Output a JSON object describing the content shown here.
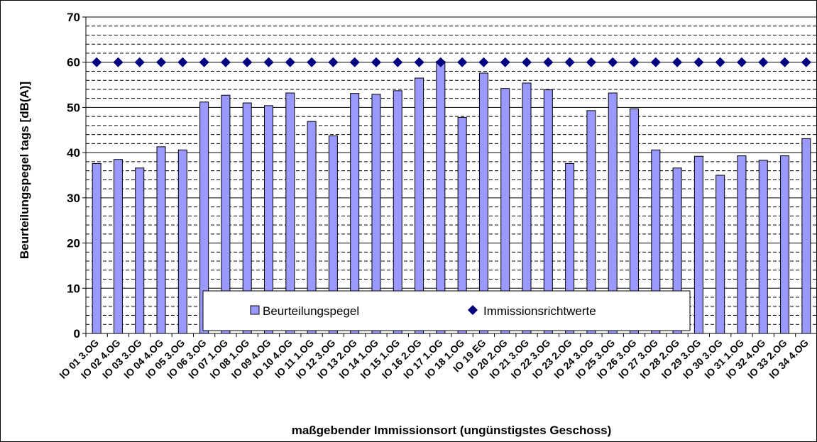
{
  "chart_data": {
    "type": "bar",
    "ylabel": "Beurteilungspegel tags [dB(A)]",
    "xlabel": "maßgebender Immissionsort (ungünstigstes Geschoss)",
    "ylim": [
      0,
      70
    ],
    "yticks": [
      0,
      10,
      20,
      30,
      40,
      50,
      60,
      70
    ],
    "minor_grid_step": 2,
    "grid": true,
    "legend_position": "bottom-center",
    "categories": [
      "IO 01 3.OG",
      "IO 02 4.OG",
      "IO 03 3.OG",
      "IO 04 4.OG",
      "IO 05 3.OG",
      "IO 06 3.OG",
      "IO 07 1.OG",
      "IO 08 1.OG",
      "IO 09 4.OG",
      "IO 10 4.OG",
      "IO 11 1.OG",
      "IO 12 3.OG",
      "IO 13 2.OG",
      "IO 14 1.OG",
      "IO 15 1.OG",
      "IO 16 2.OG",
      "IO 17 1.OG",
      "IO 18 1.OG",
      "IO 19 EG",
      "IO 20 2.OG",
      "IO 21 3.OG",
      "IO 22 3.OG",
      "IO 23 2.OG",
      "IO 24 3.OG",
      "IO 25 3.OG",
      "IO 26 3.OG",
      "IO 27 3.OG",
      "IO 28 2.OG",
      "IO 29 3.OG",
      "IO 30 3.OG",
      "IO 31 1.OG",
      "IO 32 4.OG",
      "IO 33 2.OG",
      "IO 34 4.OG"
    ],
    "series": [
      {
        "name": "Beurteilungspegel",
        "type": "bar",
        "color": "#9999ff",
        "values": [
          37.6,
          38.5,
          36.6,
          41.3,
          40.6,
          51.2,
          52.7,
          51.0,
          50.4,
          53.2,
          46.9,
          43.7,
          53.1,
          52.9,
          53.7,
          56.5,
          60.2,
          47.8,
          57.6,
          54.2,
          55.4,
          53.9,
          37.6,
          49.3,
          53.2,
          49.7,
          40.6,
          36.6,
          39.2,
          35.0,
          39.3,
          38.3,
          39.3,
          43.1
        ]
      },
      {
        "name": "Immissionsrichtwerte",
        "type": "scatter",
        "marker": "diamond",
        "color": "#000080",
        "values": [
          60,
          60,
          60,
          60,
          60,
          60,
          60,
          60,
          60,
          60,
          60,
          60,
          60,
          60,
          60,
          60,
          60,
          60,
          60,
          60,
          60,
          60,
          60,
          60,
          60,
          60,
          60,
          60,
          60,
          60,
          60,
          60,
          60,
          60
        ]
      }
    ]
  }
}
